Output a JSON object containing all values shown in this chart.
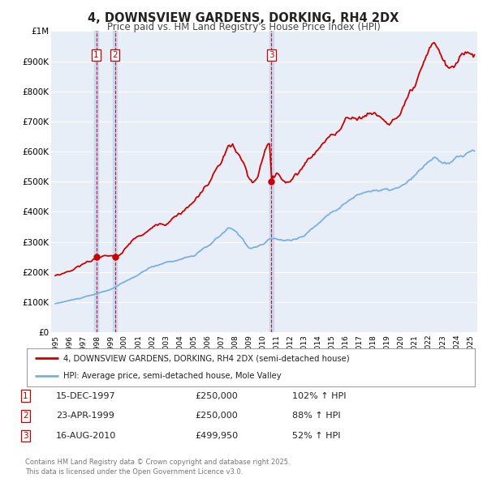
{
  "title": "4, DOWNSVIEW GARDENS, DORKING, RH4 2DX",
  "subtitle": "Price paid vs. HM Land Registry's House Price Index (HPI)",
  "ylim": [
    0,
    1000000
  ],
  "yticks": [
    0,
    100000,
    200000,
    300000,
    400000,
    500000,
    600000,
    700000,
    800000,
    900000,
    1000000
  ],
  "ytick_labels": [
    "£0",
    "£100K",
    "£200K",
    "£300K",
    "£400K",
    "£500K",
    "£600K",
    "£700K",
    "£800K",
    "£900K",
    "£1M"
  ],
  "background_color": "#ffffff",
  "plot_bg_color": "#e8eef8",
  "grid_color": "#ffffff",
  "sale_color": "#cc0000",
  "hpi_color": "#7ab0e0",
  "vline_color": "#cc0000",
  "vshade_color": "#c8d8f0",
  "marker_color": "#cc0000",
  "vlines": [
    1997.96,
    1999.31,
    2010.62
  ],
  "legend_sale_label": "4, DOWNSVIEW GARDENS, DORKING, RH4 2DX (semi-detached house)",
  "legend_hpi_label": "HPI: Average price, semi-detached house, Mole Valley",
  "table_rows": [
    {
      "num": "1",
      "date": "15-DEC-1997",
      "price": "£250,000",
      "pct": "102% ↑ HPI"
    },
    {
      "num": "2",
      "date": "23-APR-1999",
      "price": "£250,000",
      "pct": "88% ↑ HPI"
    },
    {
      "num": "3",
      "date": "16-AUG-2010",
      "price": "£499,950",
      "pct": "52% ↑ HPI"
    }
  ],
  "footer": "Contains HM Land Registry data © Crown copyright and database right 2025.\nThis data is licensed under the Open Government Licence v3.0.",
  "xlim_start": 1994.7,
  "xlim_end": 2025.5,
  "sale_prices": [
    250000,
    250000,
    499950
  ],
  "sale_years": [
    1997.96,
    1999.31,
    2010.62
  ]
}
